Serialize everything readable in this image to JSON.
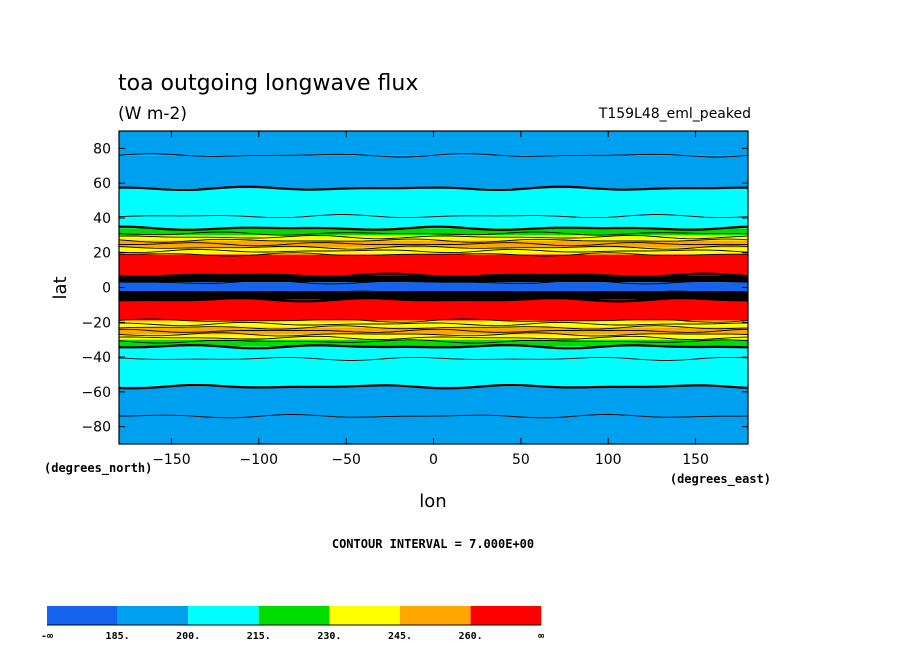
{
  "chart_data": {
    "type": "heatmap",
    "title": "toa outgoing longwave flux",
    "units": "(W m-2)",
    "run_label": "T159L48_eml_peaked",
    "xlabel": "lon",
    "ylabel": "lat",
    "x_unit_label": "(degrees_east)",
    "y_unit_label": "(degrees_north)",
    "xlim": [
      -180,
      180
    ],
    "ylim": [
      -90,
      90
    ],
    "x_ticks": [
      -150,
      -100,
      -50,
      0,
      50,
      100,
      150
    ],
    "y_ticks": [
      -80,
      -60,
      -40,
      -20,
      0,
      20,
      40,
      60,
      80
    ],
    "contour_interval_text": "CONTOUR INTERVAL = 7.000E+00",
    "colorbar": {
      "levels": [
        "-∞",
        "185.",
        "200.",
        "215.",
        "230.",
        "245.",
        "260.",
        "∞"
      ],
      "colors": [
        "#1464f0",
        "#00a0f0",
        "#00ffff",
        "#00dc00",
        "#ffff00",
        "#ffa500",
        "#ff0000"
      ]
    },
    "zonal_bands": [
      {
        "lat_min": 76,
        "lat_max": 90,
        "color_index": 1
      },
      {
        "lat_min": 57,
        "lat_max": 76,
        "color_index": 1
      },
      {
        "lat_min": 34,
        "lat_max": 57,
        "color_index": 2
      },
      {
        "lat_min": 30,
        "lat_max": 34,
        "color_index": 3
      },
      {
        "lat_min": 27,
        "lat_max": 30,
        "color_index": 4
      },
      {
        "lat_min": 23,
        "lat_max": 27,
        "color_index": 5
      },
      {
        "lat_min": 19,
        "lat_max": 23,
        "color_index": 4
      },
      {
        "lat_min": 7,
        "lat_max": 19,
        "color_index": 6
      },
      {
        "lat_min": 3,
        "lat_max": 7,
        "color_index": 0
      },
      {
        "lat_min": -2,
        "lat_max": 3,
        "color_index": 0
      },
      {
        "lat_min": -7,
        "lat_max": -2,
        "color_index": 0
      },
      {
        "lat_min": -19,
        "lat_max": -7,
        "color_index": 6
      },
      {
        "lat_min": -23,
        "lat_max": -19,
        "color_index": 4
      },
      {
        "lat_min": -27,
        "lat_max": -23,
        "color_index": 5
      },
      {
        "lat_min": -30,
        "lat_max": -27,
        "color_index": 4
      },
      {
        "lat_min": -34,
        "lat_max": -30,
        "color_index": 3
      },
      {
        "lat_min": -57,
        "lat_max": -34,
        "color_index": 2
      },
      {
        "lat_min": -90,
        "lat_max": -57,
        "color_index": 1
      }
    ],
    "contour_lines_lat": [
      76,
      57,
      41,
      34,
      31,
      29,
      27,
      25,
      23,
      21,
      19,
      7,
      5,
      3,
      -3,
      -5,
      -7,
      -19,
      -21,
      -23,
      -25,
      -27,
      -29,
      -31,
      -34,
      -41,
      -57,
      -74
    ]
  }
}
